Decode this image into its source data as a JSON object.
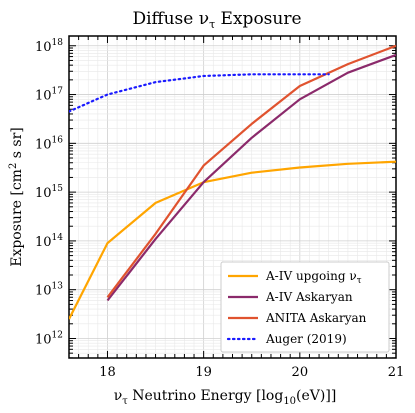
{
  "chart_data": {
    "type": "line",
    "title": {
      "main": "Diffuse ν",
      "sub": "τ",
      "tail": " Exposure"
    },
    "xlabel": {
      "pre": "ν",
      "sub": "τ",
      "mid": " Neutrino Energy [log",
      "sub2": "10",
      "post": "(eV)]]"
    },
    "ylabel": {
      "main": "Exposure [cm",
      "sup": "2",
      "tail": " s sr]"
    },
    "xlim": [
      17.6,
      21.0
    ],
    "ylim_log10": [
      11.6,
      18.2
    ],
    "x_ticks": [
      "18",
      "19",
      "20",
      "21"
    ],
    "y_ticks": [
      {
        "base": "10",
        "exp": "12"
      },
      {
        "base": "10",
        "exp": "13"
      },
      {
        "base": "10",
        "exp": "14"
      },
      {
        "base": "10",
        "exp": "15"
      },
      {
        "base": "10",
        "exp": "16"
      },
      {
        "base": "10",
        "exp": "17"
      },
      {
        "base": "10",
        "exp": "18"
      }
    ],
    "grid": true,
    "y_scale": "log",
    "legend_position": "bottom-right",
    "series": [
      {
        "name": "A-IV upgoing ν",
        "name_sub": "τ",
        "color": "#ffa500",
        "style": "solid",
        "x": [
          17.6,
          18.0,
          18.5,
          19.0,
          19.5,
          20.0,
          20.5,
          21.0
        ],
        "y": [
          2500000000000.0,
          90000000000000.0,
          600000000000000.0,
          1600000000000000.0,
          2500000000000000.0,
          3200000000000000.0,
          3800000000000000.0,
          4200000000000000.0
        ]
      },
      {
        "name": "A-IV Askaryan",
        "color": "#8b2a6b",
        "style": "solid",
        "x": [
          18.0,
          18.5,
          19.0,
          19.5,
          20.0,
          20.5,
          21.0
        ],
        "y": [
          6000000000000.0,
          110000000000000.0,
          1600000000000000.0,
          1.3e+16,
          8e+16,
          2.8e+17,
          6.5e+17
        ]
      },
      {
        "name": "ANITA Askaryan",
        "color": "#e0532f",
        "style": "solid",
        "x": [
          18.0,
          18.5,
          19.0,
          19.5,
          20.0,
          20.5,
          21.0
        ],
        "y": [
          7000000000000.0,
          140000000000000.0,
          3500000000000000.0,
          2.5e+16,
          1.5e+17,
          4.2e+17,
          1e+18
        ]
      },
      {
        "name": "Auger (2019)",
        "color": "#1a1aff",
        "style": "dotted",
        "x": [
          17.6,
          18.0,
          18.5,
          19.0,
          19.5,
          20.0,
          20.3
        ],
        "y": [
          4.5e+16,
          1e+17,
          1.8e+17,
          2.4e+17,
          2.6e+17,
          2.6e+17,
          2.6e+17
        ]
      }
    ]
  }
}
